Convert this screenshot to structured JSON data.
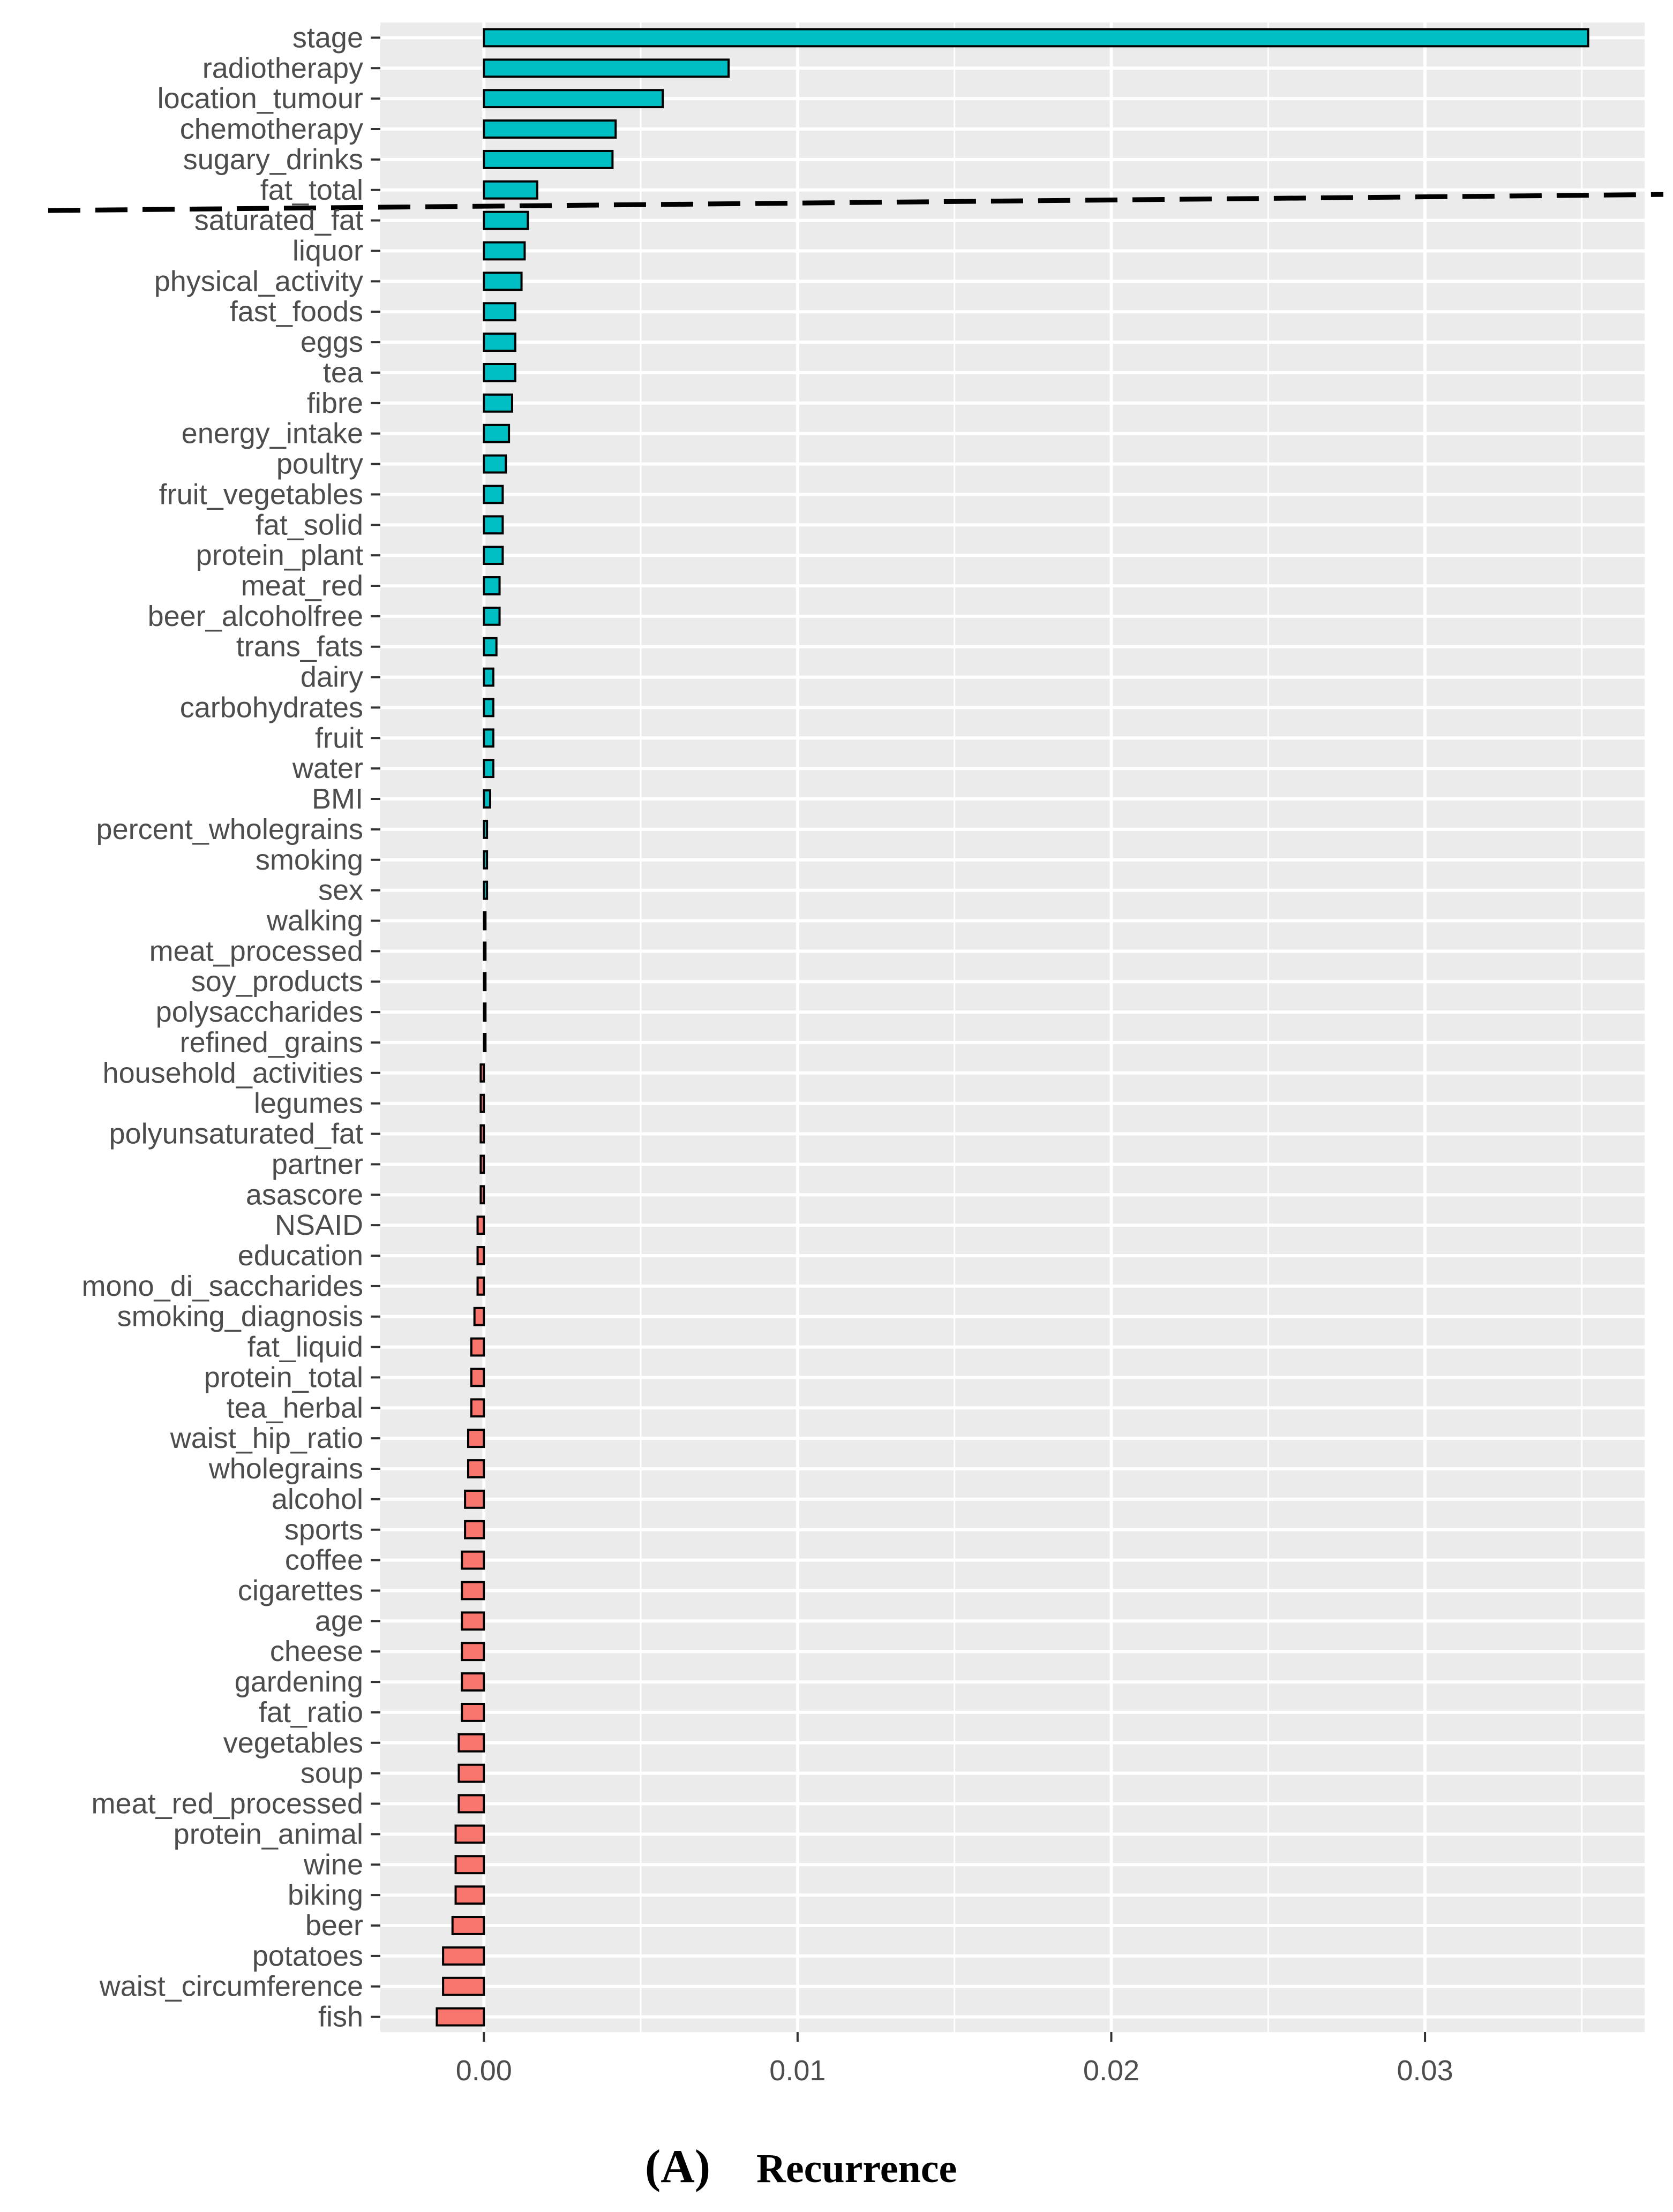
{
  "caption": {
    "panel": "(A)",
    "title": "Recurrence"
  },
  "colors": {
    "positive_fill": "#00BFC4",
    "negative_fill": "#F8766D",
    "bar_outline": "#000000",
    "panel_background": "#EBEBEB",
    "grid": "#FFFFFF",
    "threshold_line": "#000000"
  },
  "chart_data": {
    "type": "bar",
    "orientation": "horizontal",
    "title": "",
    "xlabel": "",
    "ylabel": "",
    "xlim": [
      -0.0033,
      0.037
    ],
    "x_ticks": [
      0.0,
      0.01,
      0.02,
      0.03
    ],
    "x_tick_labels": [
      "0.00",
      "0.01",
      "0.02",
      "0.03"
    ],
    "grid": true,
    "legend": "none",
    "threshold_between": [
      "fat_total",
      "saturated_fat"
    ],
    "threshold_style": "dashed",
    "categories": [
      "stage",
      "radiotherapy",
      "location_tumour",
      "chemotherapy",
      "sugary_drinks",
      "fat_total",
      "saturated_fat",
      "liquor",
      "physical_activity",
      "fast_foods",
      "eggs",
      "tea",
      "fibre",
      "energy_intake",
      "poultry",
      "fruit_vegetables",
      "fat_solid",
      "protein_plant",
      "meat_red",
      "beer_alcoholfree",
      "trans_fats",
      "dairy",
      "carbohydrates",
      "fruit",
      "water",
      "BMI",
      "percent_wholegrains",
      "smoking",
      "sex",
      "walking",
      "meat_processed",
      "soy_products",
      "polysaccharides",
      "refined_grains",
      "household_activities",
      "legumes",
      "polyunsaturated_fat",
      "partner",
      "asascore",
      "NSAID",
      "education",
      "mono_di_saccharides",
      "smoking_diagnosis",
      "fat_liquid",
      "protein_total",
      "tea_herbal",
      "waist_hip_ratio",
      "wholegrains",
      "alcohol",
      "sports",
      "coffee",
      "cigarettes",
      "age",
      "cheese",
      "gardening",
      "fat_ratio",
      "vegetables",
      "soup",
      "meat_red_processed",
      "protein_animal",
      "wine",
      "biking",
      "beer",
      "potatoes",
      "waist_circumference",
      "fish"
    ],
    "values": [
      0.0352,
      0.0078,
      0.0057,
      0.0042,
      0.0041,
      0.0017,
      0.0014,
      0.0013,
      0.0012,
      0.001,
      0.001,
      0.001,
      0.0009,
      0.0008,
      0.0007,
      0.0006,
      0.0006,
      0.0006,
      0.0005,
      0.0005,
      0.0004,
      0.0003,
      0.0003,
      0.0003,
      0.0003,
      0.0002,
      0.0001,
      0.0001,
      0.0001,
      5e-05,
      5e-05,
      5e-05,
      5e-05,
      5e-05,
      -0.0001,
      -0.0001,
      -0.0001,
      -0.0001,
      -0.0001,
      -0.0002,
      -0.0002,
      -0.0002,
      -0.0003,
      -0.0004,
      -0.0004,
      -0.0004,
      -0.0005,
      -0.0005,
      -0.0006,
      -0.0006,
      -0.0007,
      -0.0007,
      -0.0007,
      -0.0007,
      -0.0007,
      -0.0007,
      -0.0008,
      -0.0008,
      -0.0008,
      -0.0009,
      -0.0009,
      -0.0009,
      -0.001,
      -0.0013,
      -0.0013,
      -0.0015
    ]
  }
}
